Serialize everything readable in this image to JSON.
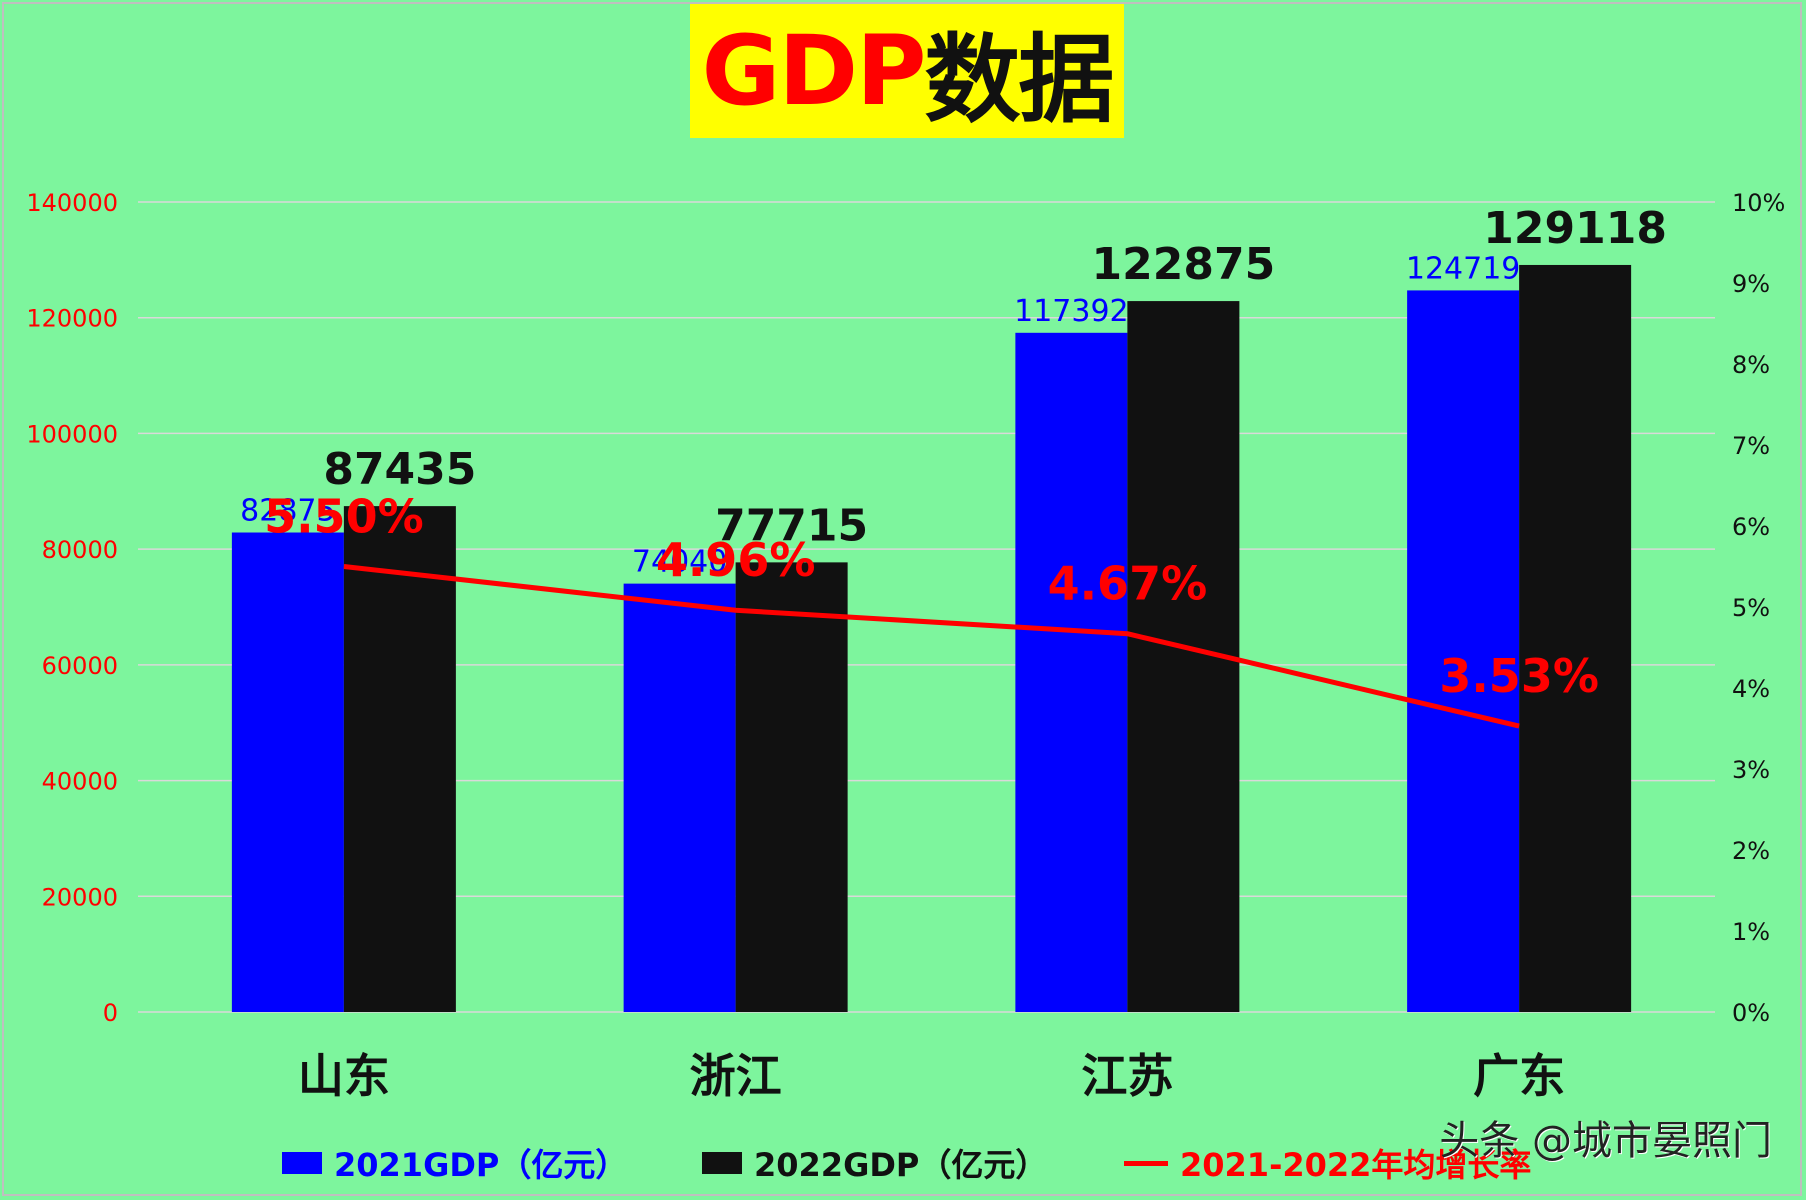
{
  "title": {
    "part1": "GDP",
    "part2": "数据"
  },
  "watermark": "头条 @城市晏照门",
  "legend": [
    {
      "label": "2021GDP（亿元）",
      "color": "#0000ff",
      "kind": "bar"
    },
    {
      "label": "2022GDP（亿元）",
      "color": "#111111",
      "kind": "bar"
    },
    {
      "label": "2021-2022年均增长率",
      "color": "#ff0000",
      "kind": "line"
    }
  ],
  "chart_data": {
    "type": "bar",
    "categories": [
      "山东",
      "浙江",
      "江苏",
      "广东"
    ],
    "series": [
      {
        "name": "2021GDP（亿元）",
        "values": [
          82875,
          74040,
          117392,
          124719
        ],
        "color": "#0000ff",
        "label_color": "#0000ff"
      },
      {
        "name": "2022GDP（亿元）",
        "values": [
          87435,
          77715,
          122875,
          129118
        ],
        "color": "#111111",
        "label_color": "#111111"
      }
    ],
    "line_series": {
      "name": "2021-2022年均增长率",
      "values": [
        5.5,
        4.96,
        4.67,
        3.53
      ],
      "labels": [
        "5.50%",
        "4.96%",
        "4.67%",
        "3.53%"
      ],
      "color": "#ff0000",
      "axis": "right"
    },
    "left_axis": {
      "ylim": [
        0,
        140000
      ],
      "ticks": [
        "0",
        "20000",
        "40000",
        "60000",
        "80000",
        "100000",
        "120000",
        "140000"
      ],
      "tick_color": "#ff0000"
    },
    "right_axis": {
      "ylim": [
        0,
        10
      ],
      "ticks": [
        "0%",
        "1%",
        "2%",
        "3%",
        "4%",
        "5%",
        "6%",
        "7%",
        "8%",
        "9%",
        "10%"
      ],
      "tick_color": "#111111"
    },
    "grid": true
  }
}
